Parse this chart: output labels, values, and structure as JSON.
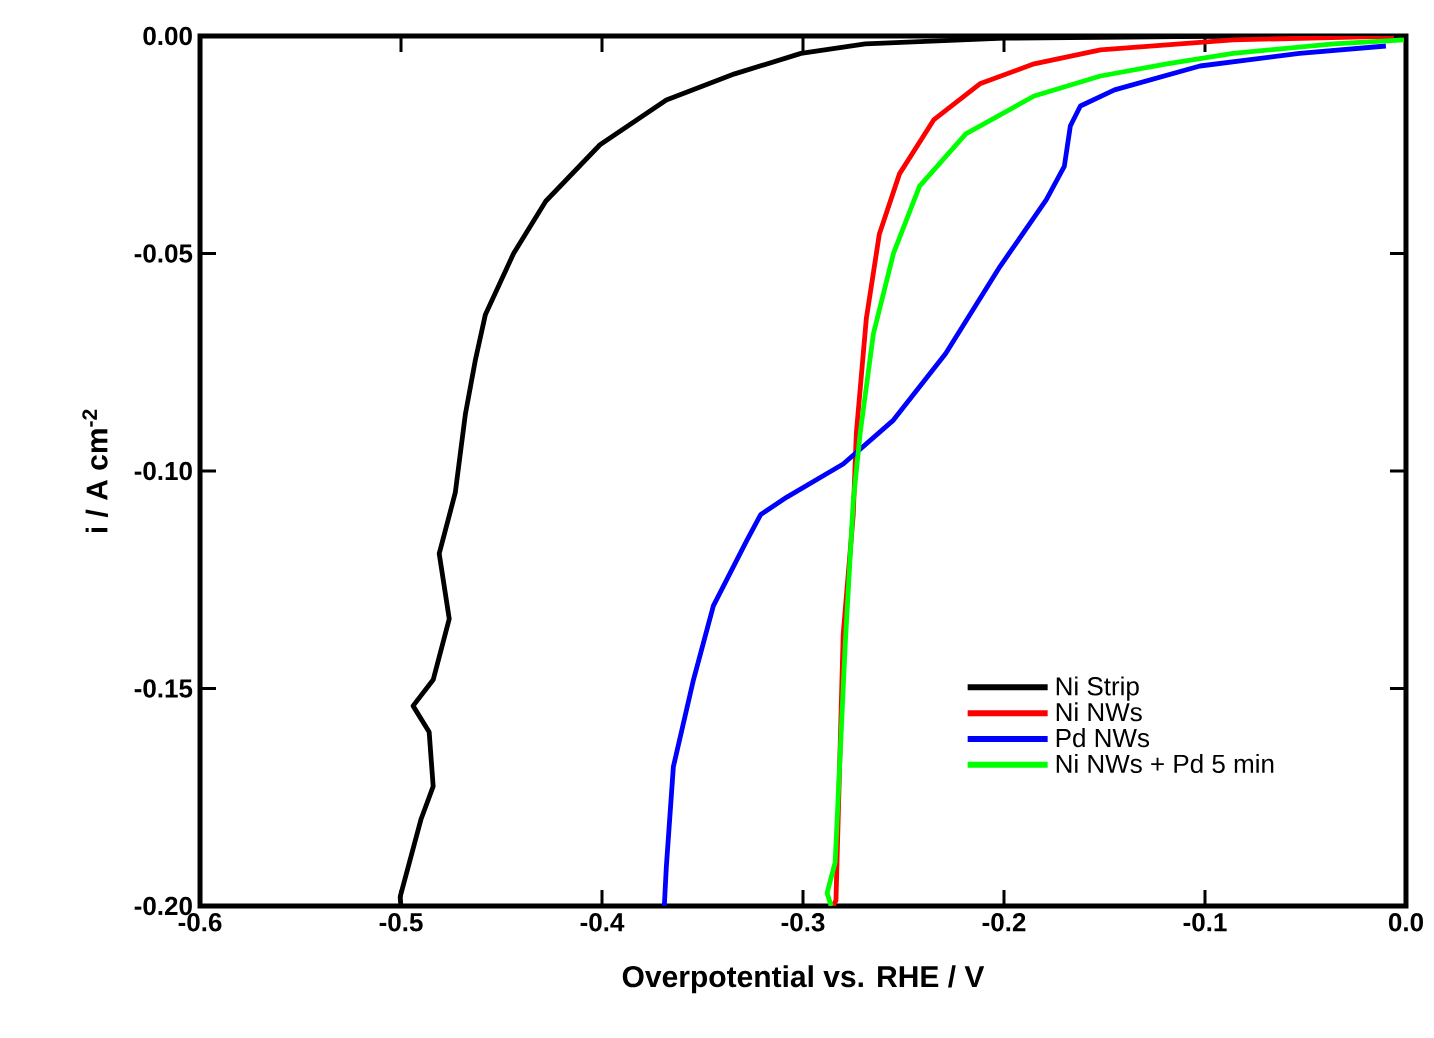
{
  "chart_data": {
    "type": "line",
    "xlabel": "Overpotential vs. RHE / V",
    "ylabel": "i / A cm$^{-2}$",
    "xlim": [
      -0.6,
      0.0
    ],
    "ylim": [
      -0.2,
      0.0
    ],
    "xticks": [
      -0.6,
      -0.5,
      -0.4,
      -0.3,
      -0.2,
      -0.1,
      {
        "value": 0,
        "label": "0.0"
      }
    ],
    "yticks": [
      {
        "value": -0.2,
        "label": "-0.20"
      },
      {
        "value": -0.15,
        "label": "-0.15"
      },
      {
        "value": -0.1,
        "label": "-0.10"
      },
      {
        "value": -0.05,
        "label": "-0.05"
      },
      {
        "value": 0,
        "label": "0.00"
      }
    ],
    "grid": false,
    "legend": "bottom right",
    "marker": "none",
    "line_style": "solid",
    "series": [
      {
        "name": "Ni Strip",
        "color": "#000000",
        "x": [
          -0.5,
          -0.5005,
          -0.49,
          -0.484,
          -0.486,
          -0.494,
          -0.484,
          -0.476,
          -0.481,
          -0.473,
          -0.468,
          -0.463,
          -0.458,
          -0.444,
          -0.428,
          -0.401,
          -0.368,
          -0.334,
          -0.301,
          -0.269,
          -0.2,
          -0.1,
          0.0
        ],
        "values": [
          -0.2,
          -0.198,
          -0.18,
          -0.1725,
          -0.16,
          -0.154,
          -0.148,
          -0.134,
          -0.119,
          -0.105,
          -0.087,
          -0.0745,
          -0.064,
          -0.05,
          -0.038,
          -0.025,
          -0.0147,
          -0.0087,
          -0.004,
          -0.0018,
          -0.0005,
          -0.0001,
          0.0
        ]
      },
      {
        "name": "Ni NWs",
        "color": "#ff0000",
        "x": [
          -0.285,
          -0.2836,
          -0.28,
          -0.275,
          -0.2735,
          -0.2685,
          -0.262,
          -0.252,
          -0.235,
          -0.212,
          -0.185,
          -0.152,
          -0.086,
          -0.006
        ],
        "values": [
          -0.2,
          -0.1987,
          -0.1375,
          -0.11,
          -0.0915,
          -0.065,
          -0.0455,
          -0.0317,
          -0.0193,
          -0.011,
          -0.0064,
          -0.0032,
          -0.0009,
          0.0
        ]
      },
      {
        "name": "Pd NWs",
        "color": "#0000ff",
        "x": [
          -0.369,
          -0.368,
          -0.3645,
          -0.3545,
          -0.3446,
          -0.328,
          -0.321,
          -0.308,
          -0.28,
          -0.255,
          -0.229,
          -0.202,
          -0.179,
          -0.17,
          -0.167,
          -0.162,
          -0.145,
          -0.1025,
          -0.053,
          -0.01
        ],
        "values": [
          -0.2,
          -0.191,
          -0.168,
          -0.148,
          -0.131,
          -0.116,
          -0.11,
          -0.106,
          -0.0984,
          -0.0883,
          -0.073,
          -0.053,
          -0.0377,
          -0.03,
          -0.0207,
          -0.0161,
          -0.0124,
          -0.0069,
          -0.004,
          -0.0023
        ]
      },
      {
        "name": "Ni NWs + Pd 5 min",
        "color": "#00ff00",
        "x": [
          -0.286,
          -0.288,
          -0.284,
          -0.279,
          -0.275,
          -0.2716,
          -0.265,
          -0.255,
          -0.242,
          -0.219,
          -0.185,
          -0.152,
          -0.119,
          -0.086,
          -0.036,
          -0.001
        ],
        "values": [
          -0.2,
          -0.197,
          -0.19,
          -0.14,
          -0.107,
          -0.0915,
          -0.0685,
          -0.05,
          -0.0345,
          -0.0225,
          -0.0138,
          -0.0092,
          -0.0064,
          -0.004,
          -0.0018,
          -0.0009
        ]
      }
    ]
  }
}
